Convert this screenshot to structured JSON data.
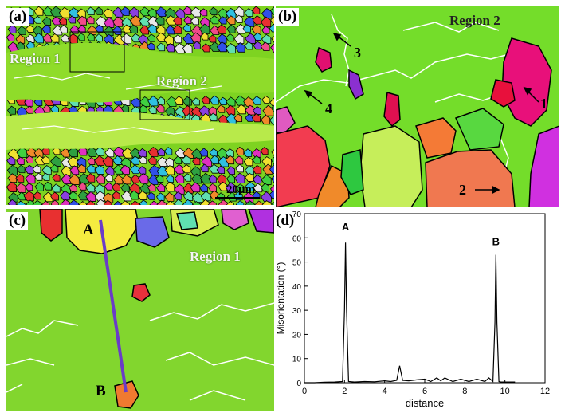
{
  "panels": {
    "a": {
      "label": "(a)",
      "region1": "Region 1",
      "region2": "Region 2",
      "scale_bar": "20μm"
    },
    "b": {
      "label": "(b)",
      "region": "Region 2",
      "markers": [
        "1",
        "2",
        "3",
        "4"
      ]
    },
    "c": {
      "label": "(c)",
      "region": "Region 1",
      "point_a": "A",
      "point_b": "B"
    },
    "d": {
      "label": "(d)"
    }
  },
  "colors": {
    "matrix_green": "#7ed321",
    "boundary_white": "#ffffff",
    "grain_border": "#000000",
    "line_profile": "#6a3cc8"
  },
  "chart_data": {
    "type": "line",
    "title": "",
    "xlabel": "distance",
    "ylabel": "Misorientation (°)",
    "xlim": [
      0,
      12
    ],
    "ylim": [
      0,
      70
    ],
    "xticks": [
      "0",
      "2",
      "4",
      "6",
      "8",
      "10",
      "12"
    ],
    "yticks": [
      "0",
      "10",
      "20",
      "30",
      "40",
      "50",
      "60",
      "70"
    ],
    "grid": false,
    "series": [
      {
        "x": [
          0,
          0.5,
          1.0,
          1.5,
          1.9,
          2.0,
          2.05,
          2.1,
          2.2,
          2.5,
          3.0,
          3.5,
          4.0,
          4.3,
          4.6,
          4.75,
          4.9,
          5.2,
          5.6,
          6.0,
          6.3,
          6.6,
          6.8,
          7.0,
          7.4,
          7.8,
          8.2,
          8.6,
          9.0,
          9.2,
          9.4,
          9.5,
          9.55,
          9.6,
          9.7,
          9.8,
          10.0,
          10.2,
          10.5
        ],
        "y": [
          0,
          0,
          0.2,
          0.3,
          0.5,
          30,
          58,
          30,
          0.5,
          0.3,
          0.5,
          0.4,
          0.8,
          0.5,
          1.0,
          7,
          1.0,
          0.8,
          1.2,
          1.5,
          0.5,
          2,
          0.8,
          2,
          0.5,
          1.5,
          0.5,
          1.5,
          0.5,
          2,
          0.5,
          25,
          53,
          25,
          0.5,
          0.3,
          0.3,
          0.3,
          0.3
        ]
      }
    ],
    "annotations": [
      {
        "text": "A",
        "x": 2.05,
        "y": 63
      },
      {
        "text": "B",
        "x": 9.55,
        "y": 57
      }
    ]
  }
}
